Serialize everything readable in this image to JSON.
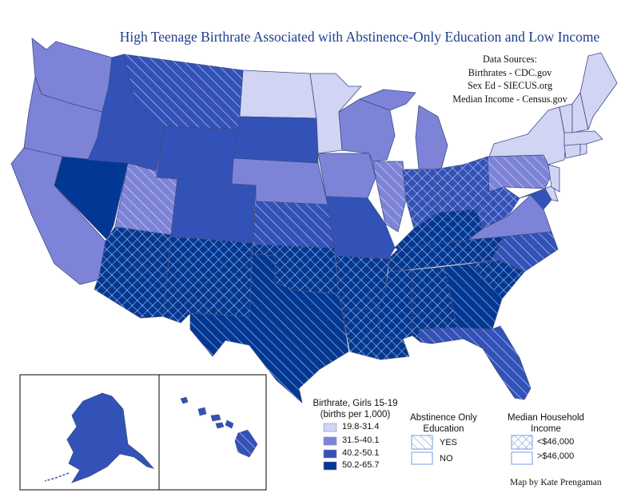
{
  "title": "High Teenage Birthrate Associated with Abstinence-Only Education and Low Income",
  "sources": {
    "heading": "Data Sources:",
    "lines": [
      "Birthrates - CDC.gov",
      "Sex Ed - SIECUS.org",
      "Median Income - Census.gov"
    ]
  },
  "credit": "Map by Kate Prengaman",
  "colors": {
    "rate_1": "#d2d4f4",
    "rate_2": "#7d84d8",
    "rate_3": "#3352b8",
    "rate_4": "#023893",
    "borders": "#3b4a88"
  },
  "birthrate_legend": {
    "heading": "Birthrate, Girls 15-19",
    "subheading": "(births per 1,000)",
    "classes": [
      {
        "label": "19.8-31.4",
        "color": "#d2d4f4"
      },
      {
        "label": "31.5-40.1",
        "color": "#7d84d8"
      },
      {
        "label": "40.2-50.1",
        "color": "#3352b8"
      },
      {
        "label": "50.2-65.7",
        "color": "#023893"
      }
    ]
  },
  "education_legend": {
    "heading_line1": "Abstinence Only",
    "heading_line2": "Education",
    "items": [
      {
        "label": "YES",
        "pattern": "hatch-diagonal"
      },
      {
        "label": "NO",
        "pattern": "none"
      }
    ]
  },
  "income_legend": {
    "heading_line1": "Median Household",
    "heading_line2": "Income",
    "items": [
      {
        "label": "<$46,000",
        "pattern": "hatch-cross"
      },
      {
        "label": ">$46,000",
        "pattern": "none"
      }
    ]
  }
}
